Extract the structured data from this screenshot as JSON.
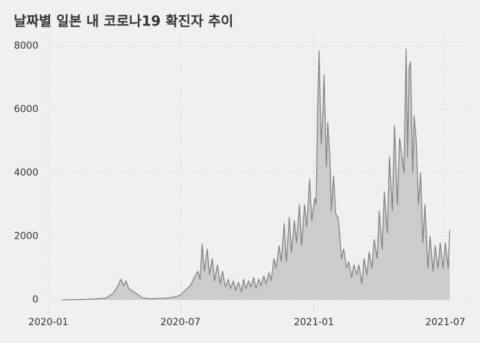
{
  "chart_data": {
    "type": "area",
    "title": "날짜별 일본 내 코로나19 확진자 추이",
    "x": [
      "2020-01-20",
      "2020-02-15",
      "2020-03-01",
      "2020-03-20",
      "2020-03-30",
      "2020-04-05",
      "2020-04-10",
      "2020-04-14",
      "2020-04-17",
      "2020-04-21",
      "2020-04-25",
      "2020-05-01",
      "2020-05-10",
      "2020-05-20",
      "2020-06-01",
      "2020-06-15",
      "2020-06-25",
      "2020-07-01",
      "2020-07-10",
      "2020-07-15",
      "2020-07-20",
      "2020-07-25",
      "2020-07-28",
      "2020-07-31",
      "2020-08-03",
      "2020-08-07",
      "2020-08-10",
      "2020-08-14",
      "2020-08-17",
      "2020-08-21",
      "2020-08-25",
      "2020-08-28",
      "2020-09-01",
      "2020-09-05",
      "2020-09-08",
      "2020-09-12",
      "2020-09-15",
      "2020-09-19",
      "2020-09-23",
      "2020-09-26",
      "2020-09-29",
      "2020-10-03",
      "2020-10-06",
      "2020-10-10",
      "2020-10-13",
      "2020-10-17",
      "2020-10-20",
      "2020-10-24",
      "2020-10-27",
      "2020-10-31",
      "2020-11-03",
      "2020-11-07",
      "2020-11-10",
      "2020-11-14",
      "2020-11-17",
      "2020-11-21",
      "2020-11-24",
      "2020-11-28",
      "2020-12-01",
      "2020-12-05",
      "2020-12-08",
      "2020-12-12",
      "2020-12-15",
      "2020-12-19",
      "2020-12-22",
      "2020-12-26",
      "2020-12-29",
      "2021-01-02",
      "2021-01-04",
      "2021-01-06",
      "2021-01-08",
      "2021-01-11",
      "2021-01-13",
      "2021-01-15",
      "2021-01-18",
      "2021-01-20",
      "2021-01-23",
      "2021-01-25",
      "2021-01-28",
      "2021-01-31",
      "2021-02-03",
      "2021-02-05",
      "2021-02-08",
      "2021-02-11",
      "2021-02-15",
      "2021-02-18",
      "2021-02-22",
      "2021-02-25",
      "2021-03-01",
      "2021-03-04",
      "2021-03-08",
      "2021-03-11",
      "2021-03-15",
      "2021-03-18",
      "2021-03-22",
      "2021-03-25",
      "2021-03-29",
      "2021-04-01",
      "2021-04-05",
      "2021-04-08",
      "2021-04-12",
      "2021-04-15",
      "2021-04-19",
      "2021-04-22",
      "2021-04-26",
      "2021-04-29",
      "2021-05-03",
      "2021-05-05",
      "2021-05-08",
      "2021-05-10",
      "2021-05-12",
      "2021-05-14",
      "2021-05-17",
      "2021-05-19",
      "2021-05-22",
      "2021-05-25",
      "2021-05-28",
      "2021-05-31",
      "2021-06-03",
      "2021-06-07",
      "2021-06-10",
      "2021-06-14",
      "2021-06-17",
      "2021-06-21",
      "2021-06-24",
      "2021-06-28",
      "2021-07-01",
      "2021-07-05",
      "2021-07-07"
    ],
    "values": [
      0,
      10,
      20,
      50,
      200,
      400,
      650,
      450,
      600,
      350,
      300,
      200,
      60,
      30,
      40,
      60,
      100,
      150,
      350,
      450,
      700,
      900,
      650,
      1750,
      900,
      1600,
      800,
      1300,
      600,
      1100,
      500,
      900,
      400,
      650,
      350,
      600,
      300,
      550,
      250,
      650,
      350,
      600,
      400,
      700,
      350,
      650,
      450,
      750,
      500,
      850,
      600,
      1300,
      1000,
      1700,
      1200,
      2400,
      1200,
      2600,
      1500,
      2500,
      1800,
      3000,
      1700,
      3000,
      2300,
      3800,
      2500,
      3200,
      3000,
      6000,
      7850,
      4900,
      5800,
      7100,
      4200,
      5600,
      4500,
      2800,
      3900,
      2700,
      2600,
      2200,
      1300,
      1600,
      1000,
      1200,
      700,
      1100,
      800,
      1100,
      500,
      1300,
      800,
      1500,
      1000,
      1900,
      1300,
      2800,
      1600,
      3400,
      2100,
      4500,
      2800,
      5500,
      3000,
      5100,
      4400,
      4000,
      7900,
      4500,
      7300,
      7500,
      4000,
      5800,
      5000,
      3000,
      4000,
      1800,
      3000,
      1000,
      2000,
      900,
      1700,
      1000,
      1800,
      1000,
      1800,
      1000,
      2200
    ],
    "line_color": "#808080",
    "fill_color": "#cccccc",
    "xlim": [
      "2019-12-24",
      "2021-07-28"
    ],
    "xticks": [
      {
        "value": "2020-01-01",
        "label": "2020-01"
      },
      {
        "value": "2020-07-01",
        "label": "2020-07"
      },
      {
        "value": "2021-01-01",
        "label": "2021-01"
      },
      {
        "value": "2021-07-01",
        "label": "2021-07"
      }
    ],
    "ylim": [
      -400,
      8400
    ],
    "yticks": [
      0,
      2000,
      4000,
      6000,
      8000
    ],
    "grid": true
  }
}
